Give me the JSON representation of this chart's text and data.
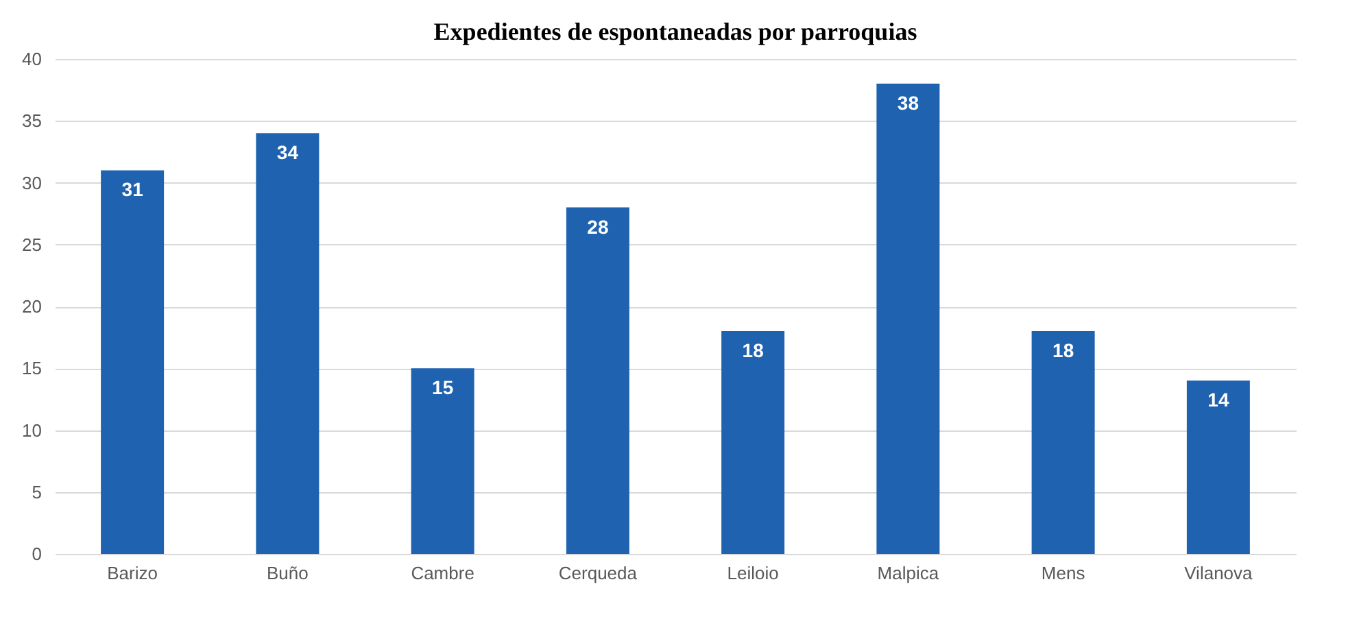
{
  "chart_data": {
    "type": "bar",
    "title": "Expedientes de espontaneadas por parroquias",
    "categories": [
      "Barizo",
      "Buño",
      "Cambre",
      "Cerqueda",
      "Leiloio",
      "Malpica",
      "Mens",
      "Vilanova"
    ],
    "values": [
      31,
      34,
      15,
      28,
      18,
      38,
      18,
      14
    ],
    "color": "#1f63b0",
    "ylim": [
      0,
      40
    ],
    "yticks": [
      0,
      5,
      10,
      15,
      20,
      25,
      30,
      35,
      40
    ],
    "grid": "y",
    "data_labels": true
  }
}
